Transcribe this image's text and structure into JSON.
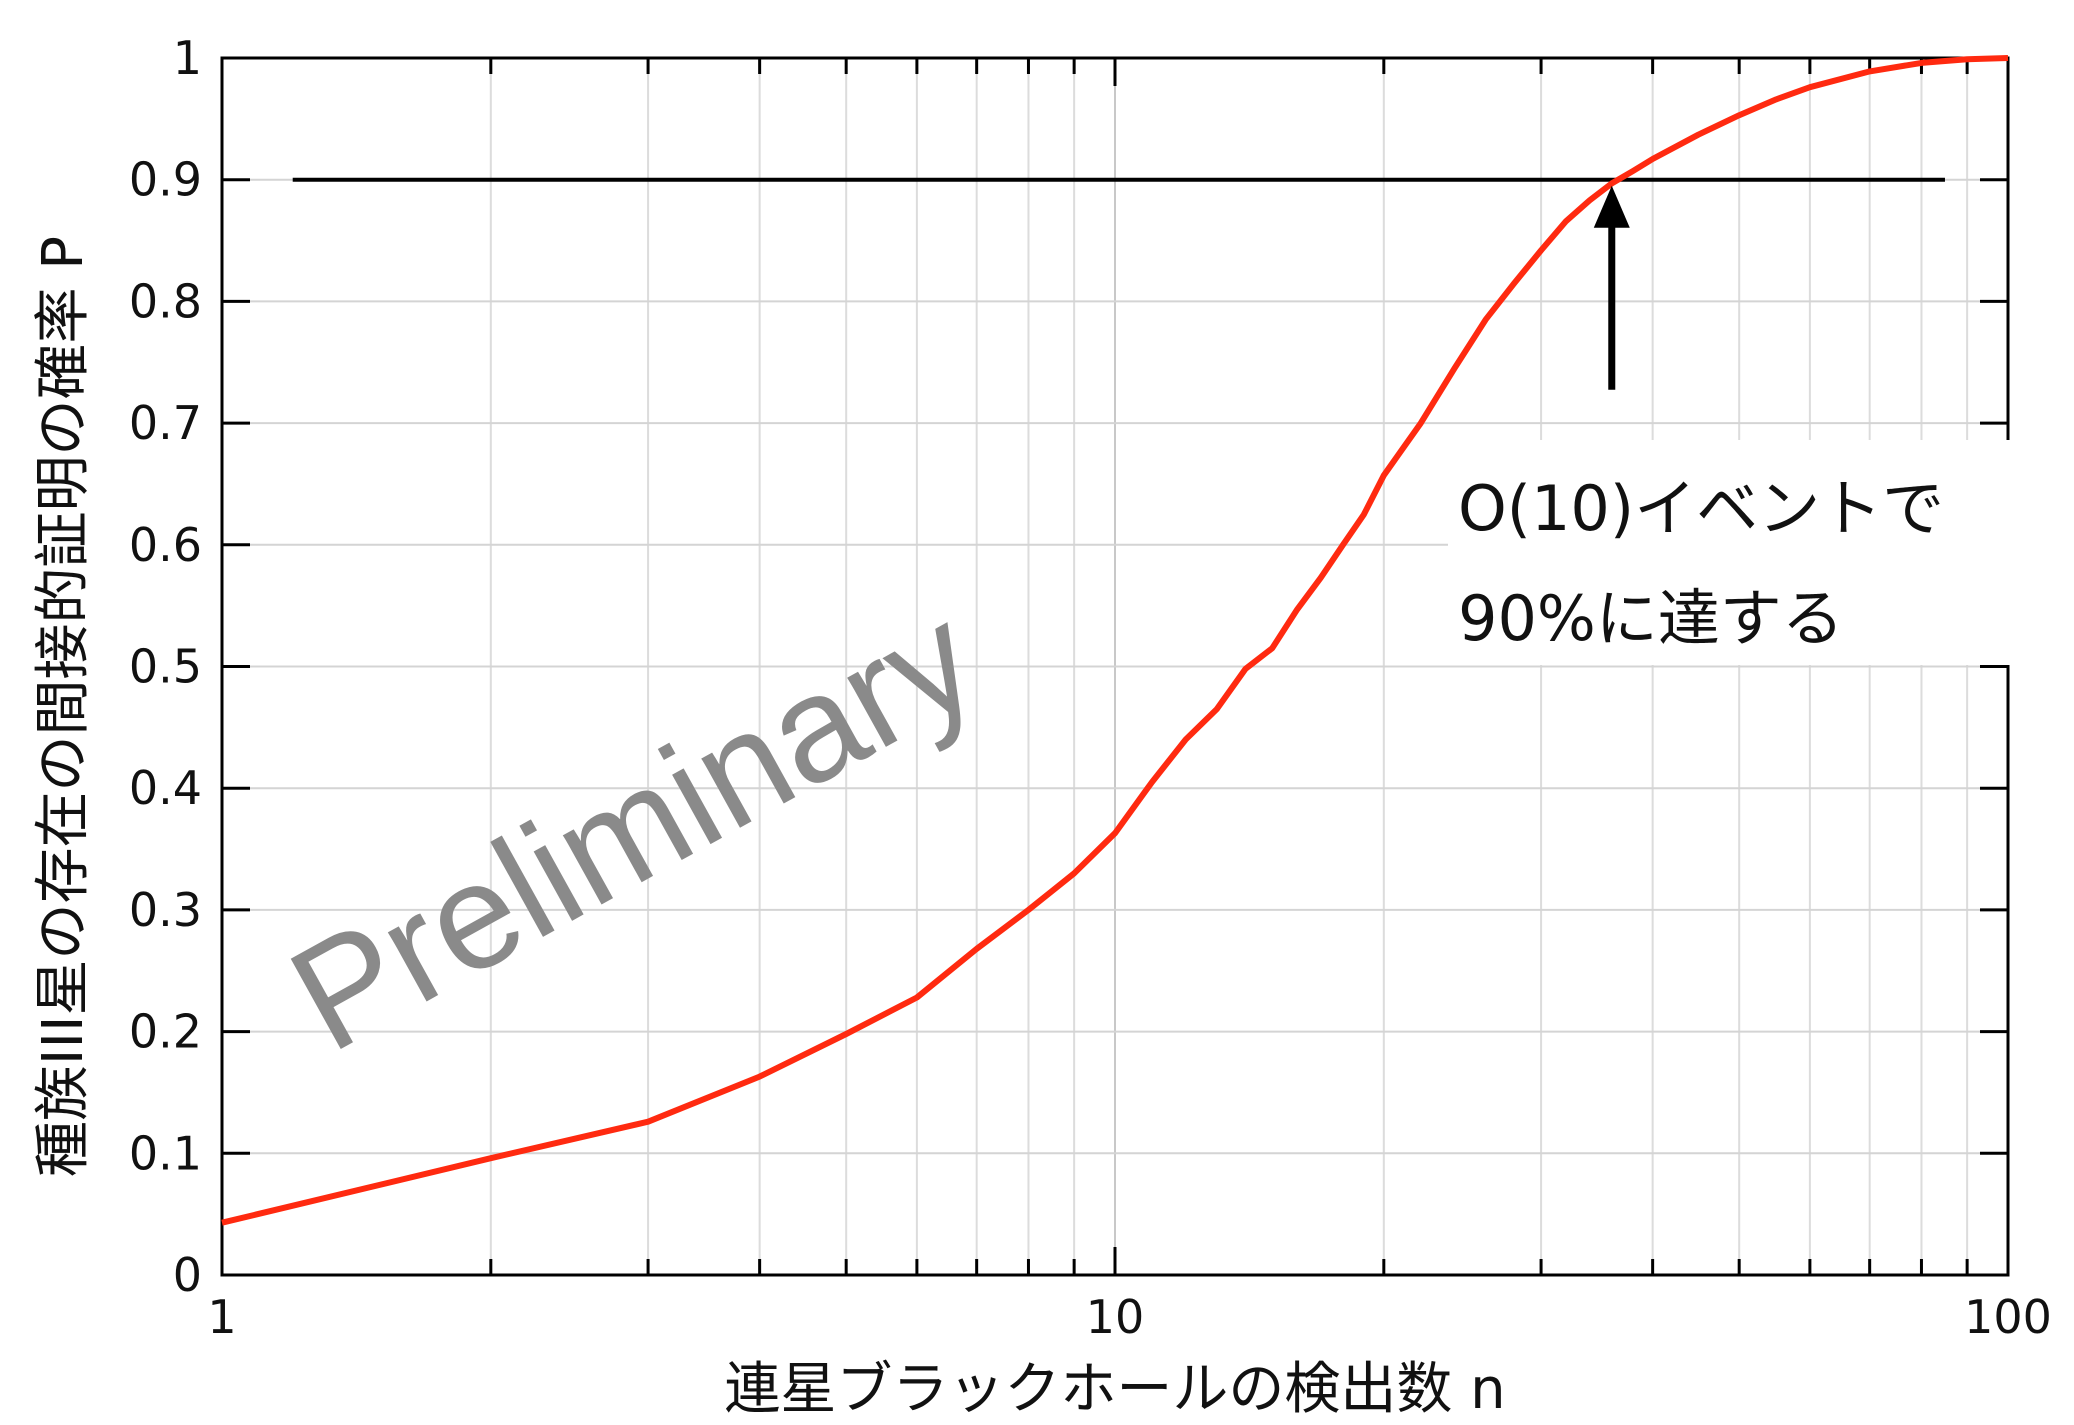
{
  "chart_data": {
    "type": "line",
    "xscale": "log",
    "xlim": [
      1,
      100
    ],
    "ylim": [
      0,
      1
    ],
    "grid": true,
    "xticks": [
      "1",
      "10",
      "100"
    ],
    "yticks": [
      "0",
      "0.1",
      "0.2",
      "0.3",
      "0.4",
      "0.5",
      "0.6",
      "0.7",
      "0.8",
      "0.9",
      "1"
    ],
    "xlabel": "連星ブラックホールの検出数 n",
    "ylabel": "種族III星の存在の間接的証明の確率 P",
    "series": [
      {
        "color": "#ff2a10",
        "x": [
          1,
          2,
          3,
          4,
          5,
          6,
          7,
          8,
          9,
          10,
          11,
          12,
          13,
          14,
          15,
          16,
          17,
          18,
          19,
          20,
          22,
          24,
          26,
          28,
          30,
          32,
          34,
          36,
          38,
          40,
          45,
          50,
          55,
          60,
          70,
          80,
          90,
          100
        ],
        "y": [
          0.043,
          0.096,
          0.126,
          0.163,
          0.198,
          0.228,
          0.268,
          0.3,
          0.33,
          0.363,
          0.405,
          0.44,
          0.465,
          0.498,
          0.515,
          0.547,
          0.573,
          0.6,
          0.625,
          0.657,
          0.7,
          0.745,
          0.785,
          0.815,
          0.842,
          0.866,
          0.883,
          0.897,
          0.907,
          0.917,
          0.937,
          0.953,
          0.966,
          0.976,
          0.989,
          0.996,
          0.999,
          1.0
        ]
      }
    ],
    "reference_line": {
      "y": 0.9,
      "x_from": 1.2,
      "x_to": 85
    },
    "annotations": {
      "arrow_target": {
        "x": 36,
        "y": 0.9
      },
      "text_lines": [
        "O(10)イベントで",
        "90%に達する"
      ]
    },
    "watermark": "Preliminary"
  }
}
